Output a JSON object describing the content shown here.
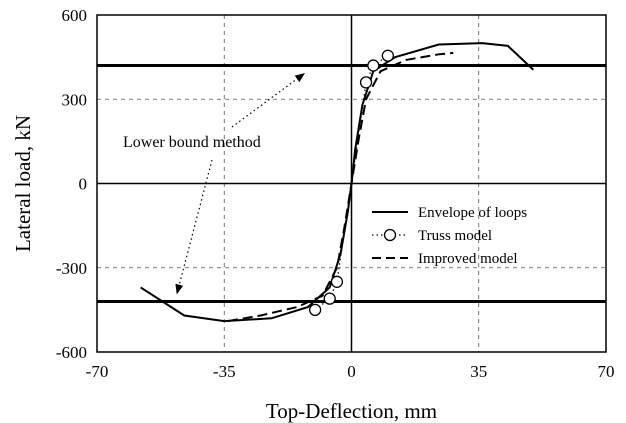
{
  "chart_data": {
    "type": "line",
    "title": "",
    "xlabel": "Top-Deflection, mm",
    "ylabel": "Lateral load, kN",
    "xlim": [
      -70,
      70
    ],
    "ylim": [
      -600,
      600
    ],
    "x_ticks": [
      "-70",
      "-35",
      "0",
      "35",
      "70"
    ],
    "y_ticks": [
      "600",
      "300",
      "0",
      "-300",
      "-600"
    ],
    "grid": true,
    "legend_position": "lower-right",
    "series": [
      {
        "name": "Envelope of loops",
        "style": "solid",
        "x": [
          -58,
          -46,
          -35,
          -22,
          -12,
          -6,
          -3,
          -1,
          0,
          1,
          3,
          6,
          12,
          24,
          36,
          43,
          50
        ],
        "y": [
          -370,
          -470,
          -490,
          -480,
          -440,
          -370,
          -250,
          -100,
          0,
          120,
          280,
          400,
          450,
          495,
          500,
          490,
          405
        ]
      },
      {
        "name": "Truss model",
        "style": "dotted-marker",
        "x": [
          -10,
          -6,
          -4,
          0,
          4,
          6,
          10
        ],
        "y": [
          -450,
          -410,
          -350,
          0,
          360,
          420,
          455
        ]
      },
      {
        "name": "Improved model",
        "style": "dashed",
        "x": [
          -34,
          -25,
          -15,
          -8,
          -4,
          -2,
          0,
          2,
          4,
          8,
          15,
          24,
          28
        ],
        "y": [
          -490,
          -470,
          -440,
          -400,
          -300,
          -160,
          0,
          160,
          300,
          400,
          440,
          460,
          465
        ]
      }
    ],
    "reference_lines": [
      {
        "name": "upper bound line",
        "y": 420
      },
      {
        "name": "lower bound line",
        "y": -420
      }
    ],
    "annotation": {
      "text": "Lower bound method",
      "targets": [
        [
          -13,
          420
        ],
        [
          -48,
          -420
        ]
      ]
    }
  }
}
